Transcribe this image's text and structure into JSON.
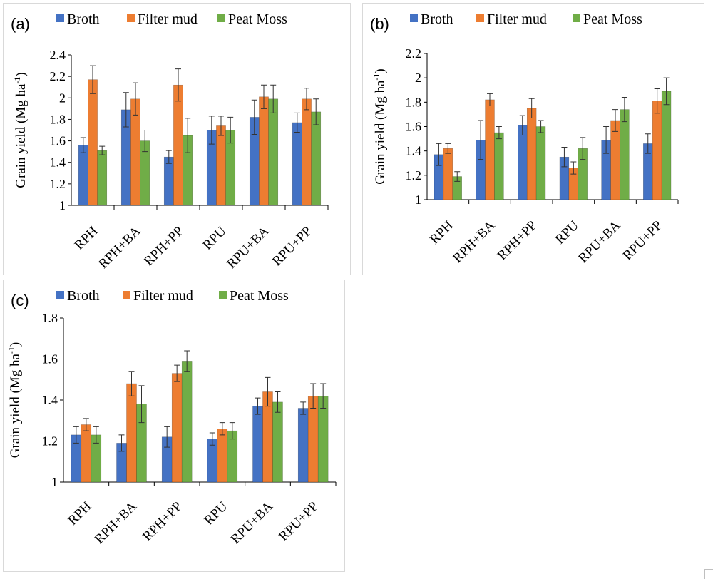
{
  "colors": {
    "broth": "#4472C4",
    "filter_mud": "#ED7D31",
    "peat_moss": "#70AD47"
  },
  "chart_data": [
    {
      "type": "bar",
      "panel_label": "(a)",
      "ylabel": "Grain yield (Mg ha-1)",
      "ylim": [
        1,
        2.4
      ],
      "yticks": [
        "1",
        "1.2",
        "1.4",
        "1.6",
        "1.8",
        "2",
        "2.2",
        "2.4"
      ],
      "categories": [
        "RPH",
        "RPH+BA",
        "RPH+PP",
        "RPU",
        "RPU+BA",
        "RPU+PP"
      ],
      "legend_position": "top",
      "grid": false,
      "series": [
        {
          "name": "Broth",
          "values": [
            1.56,
            1.89,
            1.45,
            1.7,
            1.82,
            1.77
          ],
          "errors": [
            0.07,
            0.16,
            0.06,
            0.13,
            0.16,
            0.09
          ]
        },
        {
          "name": "Filter mud",
          "values": [
            2.17,
            1.99,
            2.12,
            1.74,
            2.01,
            1.99
          ],
          "errors": [
            0.13,
            0.15,
            0.15,
            0.09,
            0.11,
            0.1
          ]
        },
        {
          "name": "Peat Moss",
          "values": [
            1.51,
            1.6,
            1.65,
            1.7,
            1.99,
            1.87
          ],
          "errors": [
            0.04,
            0.1,
            0.16,
            0.12,
            0.13,
            0.12
          ]
        }
      ]
    },
    {
      "type": "bar",
      "panel_label": "(b)",
      "ylabel": "Grain yield (Mg ha-1)",
      "ylim": [
        1,
        2.2
      ],
      "yticks": [
        "1",
        "1.2",
        "1.4",
        "1.6",
        "1.8",
        "2",
        "2.2"
      ],
      "categories": [
        "RPH",
        "RPH+BA",
        "RPH+PP",
        "RPU",
        "RPU+BA",
        "RPU+PP"
      ],
      "legend_position": "top",
      "grid": false,
      "series": [
        {
          "name": "Broth",
          "values": [
            1.37,
            1.49,
            1.61,
            1.35,
            1.49,
            1.46
          ],
          "errors": [
            0.09,
            0.16,
            0.08,
            0.08,
            0.11,
            0.08
          ]
        },
        {
          "name": "Filter mud",
          "values": [
            1.42,
            1.82,
            1.75,
            1.26,
            1.65,
            1.81
          ],
          "errors": [
            0.04,
            0.05,
            0.08,
            0.05,
            0.09,
            0.1
          ]
        },
        {
          "name": "Peat Moss",
          "values": [
            1.19,
            1.55,
            1.6,
            1.42,
            1.74,
            1.89
          ],
          "errors": [
            0.04,
            0.05,
            0.05,
            0.09,
            0.1,
            0.11
          ]
        }
      ]
    },
    {
      "type": "bar",
      "panel_label": "(c)",
      "ylabel": "Grain yield (Mg ha-1)",
      "ylim": [
        1,
        1.8
      ],
      "yticks": [
        "1",
        "1.2",
        "1.4",
        "1.6",
        "1.8"
      ],
      "categories": [
        "RPH",
        "RPH+BA",
        "RPH+PP",
        "RPU",
        "RPU+BA",
        "RPU+PP"
      ],
      "legend_position": "top",
      "grid": false,
      "series": [
        {
          "name": "Broth",
          "values": [
            1.23,
            1.19,
            1.22,
            1.21,
            1.37,
            1.36
          ],
          "errors": [
            0.04,
            0.04,
            0.05,
            0.03,
            0.04,
            0.03
          ]
        },
        {
          "name": "Filter mud",
          "values": [
            1.28,
            1.48,
            1.53,
            1.26,
            1.44,
            1.42
          ],
          "errors": [
            0.03,
            0.06,
            0.04,
            0.03,
            0.07,
            0.06
          ]
        },
        {
          "name": "Peat Moss",
          "values": [
            1.23,
            1.38,
            1.59,
            1.25,
            1.39,
            1.42
          ],
          "errors": [
            0.04,
            0.09,
            0.05,
            0.04,
            0.05,
            0.06
          ]
        }
      ]
    }
  ]
}
